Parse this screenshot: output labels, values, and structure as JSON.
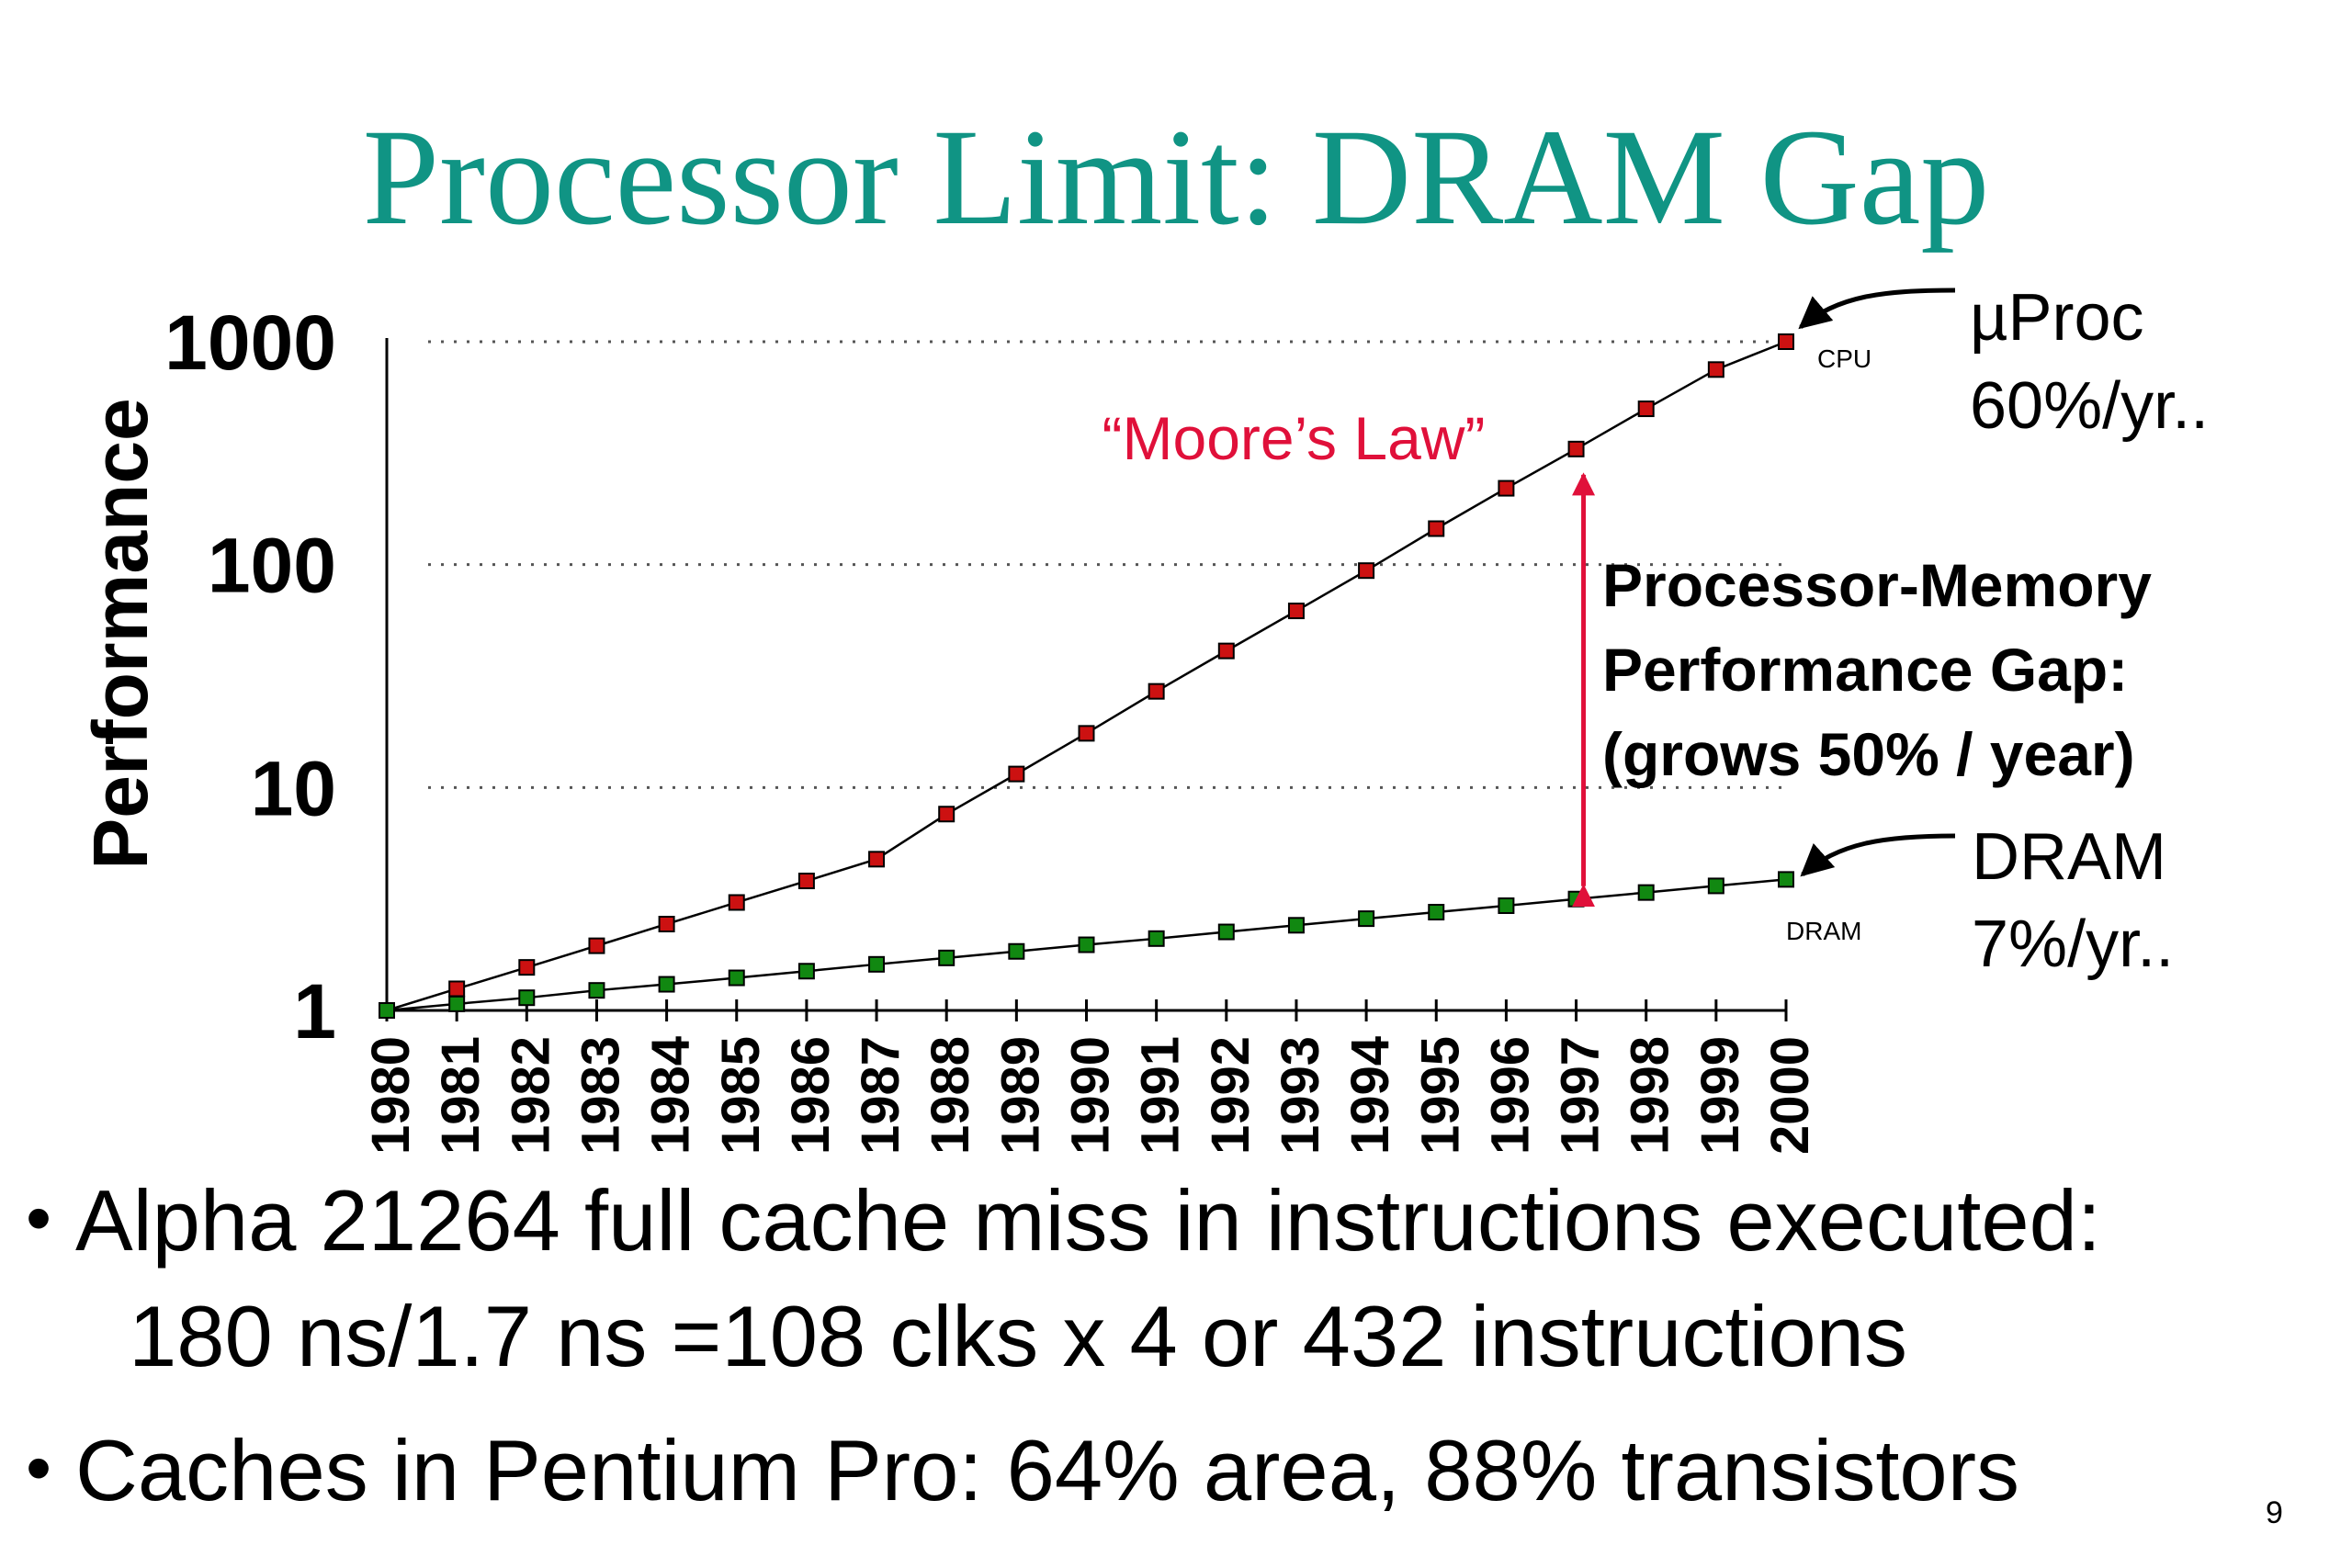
{
  "slide": {
    "title": "Processor Limit: DRAM Gap",
    "bullets": [
      {
        "line1": "Alpha 21264 full cache miss in instructions executed:",
        "line2": "180 ns/1.7 ns =108 clks x 4 or 432 instructions"
      },
      {
        "line1": "Caches in Pentium Pro: 64% area, 88% transistors"
      }
    ],
    "page_number": "9",
    "bullet_char": "•"
  },
  "chart_data": {
    "type": "line",
    "ylabel": "Performance",
    "yscale": "log",
    "ylim": [
      1,
      1000
    ],
    "yticks": [
      "1",
      "10",
      "100",
      "1000"
    ],
    "grid": "dotted horizontal at 10, 100, 1000",
    "categories": [
      "1980",
      "1981",
      "1982",
      "1983",
      "1984",
      "1985",
      "1986",
      "1987",
      "1988",
      "1989",
      "1990",
      "1991",
      "1992",
      "1993",
      "1994",
      "1995",
      "1996",
      "1997",
      "1998",
      "1999",
      "2000"
    ],
    "series": [
      {
        "name": "CPU",
        "color": "#cc1111",
        "values": [
          1,
          1.25,
          1.56,
          1.95,
          2.44,
          3.05,
          3.81,
          4.77,
          7.6,
          11.5,
          17.5,
          27,
          41,
          62,
          94,
          145,
          220,
          330,
          500,
          750,
          1000
        ]
      },
      {
        "name": "DRAM",
        "color": "#118811",
        "values": [
          1,
          1.07,
          1.14,
          1.23,
          1.31,
          1.4,
          1.5,
          1.61,
          1.72,
          1.84,
          1.97,
          2.1,
          2.25,
          2.41,
          2.58,
          2.76,
          2.95,
          3.16,
          3.38,
          3.62,
          3.87
        ]
      }
    ],
    "annotations": {
      "moores_law": "“Moore’s Law”",
      "uproc_line1": "µProc",
      "uproc_line2": "60%/yr..",
      "dram_line1": "DRAM",
      "dram_line2": "7%/yr..",
      "gap_line1": "Processor-Memory",
      "gap_line2": "Performance Gap:",
      "gap_line3": "(grows 50% / year)",
      "gap_year": "1997",
      "accent_color": "#e0103a",
      "title_color": "#109484"
    }
  }
}
